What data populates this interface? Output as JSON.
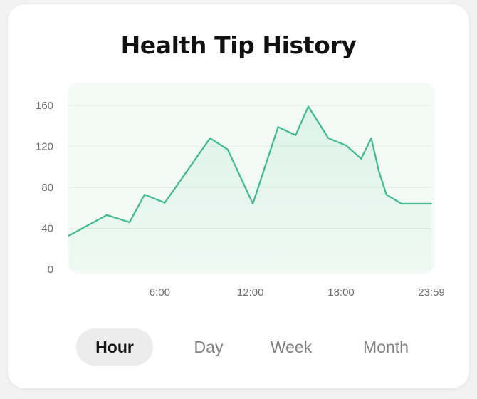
{
  "title": "Health Tip History",
  "tabs": [
    {
      "label": "Hour",
      "active": true
    },
    {
      "label": "Day",
      "active": false
    },
    {
      "label": "Week",
      "active": false
    },
    {
      "label": "Month",
      "active": false
    }
  ],
  "colors": {
    "line": "#3dbb8c",
    "plot_background": "#f4fbf7",
    "active_tab": "#ececec"
  },
  "chart_data": {
    "type": "area",
    "title": "Health Tip History",
    "xlabel": "",
    "ylabel": "",
    "x_ticks": [
      "6:00",
      "12:00",
      "18:00",
      "23:59"
    ],
    "y_ticks": [
      0,
      40,
      80,
      120,
      160
    ],
    "ylim": [
      0,
      168
    ],
    "xlim": [
      "0:00",
      "23:59"
    ],
    "grid": true,
    "series": [
      {
        "x": [
          "0:00",
          "2:30",
          "4:00",
          "5:00",
          "6:20",
          "9:20",
          "10:30",
          "12:10",
          "13:50",
          "15:00",
          "15:50",
          "17:10",
          "18:20",
          "19:20",
          "20:00",
          "20:30",
          "21:00",
          "22:00",
          "22:40",
          "23:30",
          "23:59"
        ],
        "values": [
          33,
          53,
          46,
          73,
          65,
          128,
          117,
          64,
          139,
          131,
          159,
          128,
          121,
          108,
          128,
          96,
          73,
          64,
          64,
          64,
          64
        ]
      }
    ]
  }
}
